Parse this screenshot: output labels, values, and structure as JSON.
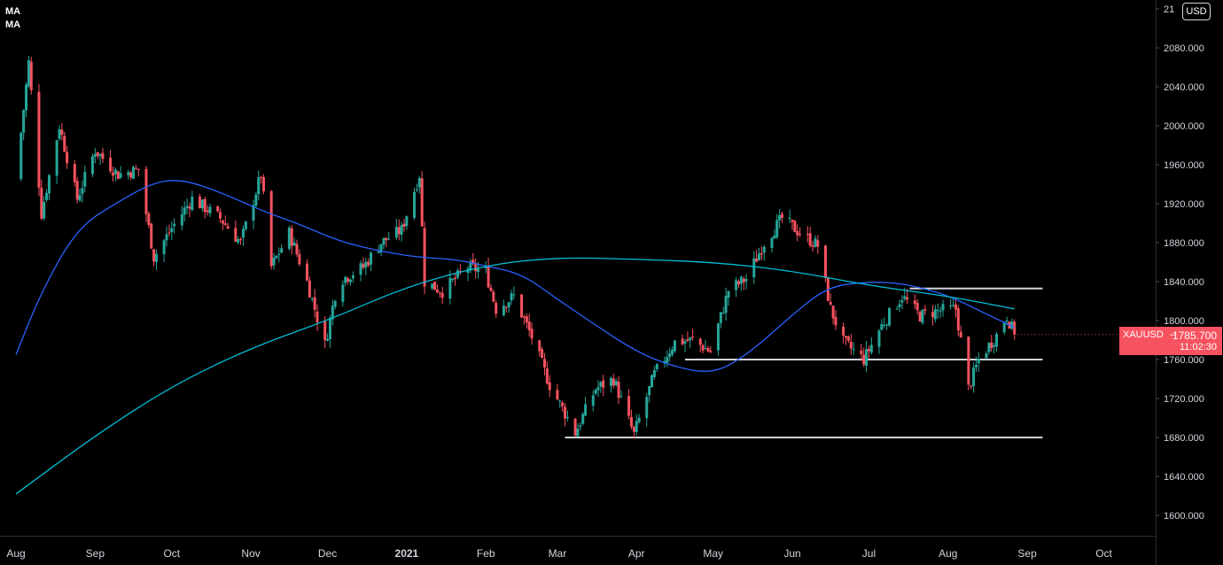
{
  "legend": {
    "items": [
      "MA",
      "MA"
    ]
  },
  "axis": {
    "currency": "USD"
  },
  "price_tag": {
    "symbol": "XAUUSD",
    "value": "1785.700",
    "countdown": "11:02:30"
  },
  "colors": {
    "up": "#26a69a",
    "down": "#f7525f",
    "ma_fast": "#2962ff",
    "ma_slow": "#00bcd4",
    "hline": "#d1d4dc",
    "background": "#000000"
  },
  "chart_data": {
    "type": "candlestick",
    "symbol": "XAUUSD",
    "x_ticks": [
      "Aug",
      "Sep",
      "Oct",
      "Nov",
      "Dec",
      "2021",
      "Feb",
      "Mar",
      "Apr",
      "May",
      "Jun",
      "Jul",
      "Aug",
      "Sep",
      "Oct"
    ],
    "y_ticks": [
      "1600.000",
      "1640.000",
      "1680.000",
      "1720.000",
      "1760.000",
      "1800.000",
      "1840.000",
      "1880.000",
      "1920.000",
      "1960.000",
      "2000.000",
      "2040.000",
      "2080.000",
      "21"
    ],
    "ylim": [
      1585,
      2120
    ],
    "anchors": [
      [
        "2020-08-01",
        1945
      ],
      [
        "2020-08-06",
        2065
      ],
      [
        "2020-08-11",
        1910
      ],
      [
        "2020-08-18",
        2000
      ],
      [
        "2020-08-25",
        1925
      ],
      [
        "2020-09-01",
        1975
      ],
      [
        "2020-09-10",
        1950
      ],
      [
        "2020-09-18",
        1955
      ],
      [
        "2020-09-24",
        1865
      ],
      [
        "2020-10-01",
        1895
      ],
      [
        "2020-10-09",
        1925
      ],
      [
        "2020-10-20",
        1905
      ],
      [
        "2020-10-28",
        1880
      ],
      [
        "2020-11-05",
        1950
      ],
      [
        "2020-11-09",
        1855
      ],
      [
        "2020-11-16",
        1890
      ],
      [
        "2020-11-23",
        1840
      ],
      [
        "2020-11-30",
        1775
      ],
      [
        "2020-12-05",
        1840
      ],
      [
        "2020-12-15",
        1855
      ],
      [
        "2020-12-22",
        1880
      ],
      [
        "2020-12-30",
        1893
      ],
      [
        "2021-01-06",
        1950
      ],
      [
        "2021-01-08",
        1840
      ],
      [
        "2021-01-15",
        1830
      ],
      [
        "2021-01-25",
        1855
      ],
      [
        "2021-02-01",
        1850
      ],
      [
        "2021-02-05",
        1812
      ],
      [
        "2021-02-12",
        1825
      ],
      [
        "2021-02-19",
        1783
      ],
      [
        "2021-02-26",
        1734
      ],
      [
        "2021-03-05",
        1700
      ],
      [
        "2021-03-08",
        1685
      ],
      [
        "2021-03-16",
        1730
      ],
      [
        "2021-03-23",
        1740
      ],
      [
        "2021-03-31",
        1683
      ],
      [
        "2021-04-08",
        1745
      ],
      [
        "2021-04-16",
        1778
      ],
      [
        "2021-04-23",
        1780
      ],
      [
        "2021-04-30",
        1768
      ],
      [
        "2021-05-07",
        1831
      ],
      [
        "2021-05-14",
        1843
      ],
      [
        "2021-05-21",
        1880
      ],
      [
        "2021-05-28",
        1905
      ],
      [
        "2021-06-04",
        1890
      ],
      [
        "2021-06-11",
        1877
      ],
      [
        "2021-06-16",
        1812
      ],
      [
        "2021-06-21",
        1778
      ],
      [
        "2021-06-29",
        1760
      ],
      [
        "2021-07-06",
        1795
      ],
      [
        "2021-07-14",
        1825
      ],
      [
        "2021-07-21",
        1805
      ],
      [
        "2021-07-28",
        1810
      ],
      [
        "2021-08-04",
        1812
      ],
      [
        "2021-08-09",
        1730
      ],
      [
        "2021-08-13",
        1760
      ],
      [
        "2021-08-20",
        1785
      ],
      [
        "2021-08-24",
        1805
      ],
      [
        "2021-08-27",
        1786
      ]
    ],
    "last_price": 1785.7,
    "horizontal_levels": [
      {
        "price": 1833,
        "from": "2021-07-17",
        "to": "2021-09-07"
      },
      {
        "price": 1760,
        "from": "2021-04-20",
        "to": "2021-09-07"
      },
      {
        "price": 1680,
        "from": "2021-03-04",
        "to": "2021-09-07"
      }
    ],
    "moving_averages": [
      {
        "type": "fast",
        "points": [
          [
            "2020-08-01",
            1765
          ],
          [
            "2020-08-11",
            1830
          ],
          [
            "2020-08-25",
            1895
          ],
          [
            "2020-09-10",
            1922
          ],
          [
            "2020-09-24",
            1942
          ],
          [
            "2020-10-05",
            1945
          ],
          [
            "2020-10-20",
            1932
          ],
          [
            "2020-11-05",
            1913
          ],
          [
            "2020-11-20",
            1899
          ],
          [
            "2020-12-05",
            1882
          ],
          [
            "2020-12-20",
            1872
          ],
          [
            "2021-01-05",
            1865
          ],
          [
            "2021-01-20",
            1863
          ],
          [
            "2021-02-01",
            1856
          ],
          [
            "2021-02-15",
            1848
          ],
          [
            "2021-03-01",
            1822
          ],
          [
            "2021-03-15",
            1797
          ],
          [
            "2021-04-01",
            1768
          ],
          [
            "2021-04-15",
            1753
          ],
          [
            "2021-05-01",
            1745
          ],
          [
            "2021-05-15",
            1766
          ],
          [
            "2021-06-01",
            1806
          ],
          [
            "2021-06-15",
            1835
          ],
          [
            "2021-07-01",
            1840
          ],
          [
            "2021-07-15",
            1838
          ],
          [
            "2021-08-01",
            1826
          ],
          [
            "2021-08-15",
            1808
          ],
          [
            "2021-08-27",
            1793
          ]
        ]
      },
      {
        "type": "slow",
        "points": [
          [
            "2020-08-01",
            1622
          ],
          [
            "2020-09-01",
            1682
          ],
          [
            "2020-10-01",
            1733
          ],
          [
            "2020-11-01",
            1772
          ],
          [
            "2020-12-01",
            1800
          ],
          [
            "2021-01-01",
            1835
          ],
          [
            "2021-02-01",
            1857
          ],
          [
            "2021-03-01",
            1865
          ],
          [
            "2021-04-01",
            1863
          ],
          [
            "2021-05-01",
            1860
          ],
          [
            "2021-06-01",
            1851
          ],
          [
            "2021-07-01",
            1836
          ],
          [
            "2021-08-01",
            1825
          ],
          [
            "2021-08-27",
            1812
          ]
        ]
      }
    ]
  }
}
